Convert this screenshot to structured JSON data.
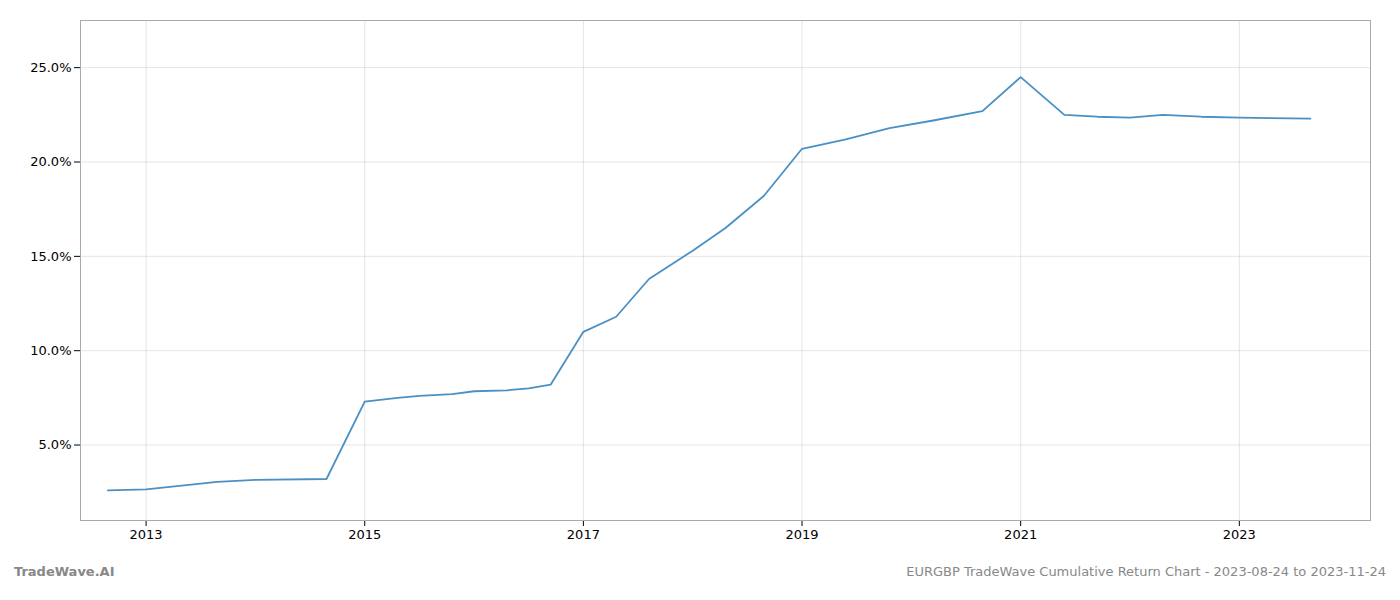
{
  "chart_data": {
    "type": "line",
    "x": [
      2012.65,
      2013.0,
      2013.65,
      2014.0,
      2014.65,
      2015.0,
      2015.3,
      2015.5,
      2015.8,
      2016.0,
      2016.3,
      2016.5,
      2016.7,
      2017.0,
      2017.3,
      2017.6,
      2018.0,
      2018.3,
      2018.65,
      2019.0,
      2019.4,
      2019.8,
      2020.2,
      2020.65,
      2021.0,
      2021.4,
      2021.7,
      2022.0,
      2022.3,
      2022.65,
      2023.0,
      2023.65
    ],
    "values": [
      2.6,
      2.65,
      3.05,
      3.15,
      3.2,
      7.3,
      7.5,
      7.6,
      7.7,
      7.85,
      7.9,
      8.0,
      8.2,
      11.0,
      11.8,
      13.8,
      15.3,
      16.5,
      18.2,
      20.7,
      21.2,
      21.8,
      22.2,
      22.7,
      24.5,
      22.5,
      22.4,
      22.35,
      22.5,
      22.4,
      22.35,
      22.3
    ],
    "color": "#4a90c4",
    "xlim": [
      2012.4,
      2024.2
    ],
    "xticks": [
      2013,
      2015,
      2017,
      2019,
      2021,
      2023
    ],
    "ylim": [
      1.0,
      27.5
    ],
    "yticks": [
      {
        "value": 5.0,
        "label": "5.0%"
      },
      {
        "value": 10.0,
        "label": "10.0%"
      },
      {
        "value": 15.0,
        "label": "15.0%"
      },
      {
        "value": 20.0,
        "label": "20.0%"
      },
      {
        "value": 25.0,
        "label": "25.0%"
      }
    ],
    "grid": true,
    "annotations": [
      "TradeWave.AI",
      "EURGBP TradeWave Cumulative Return Chart - 2023-08-24 to 2023-11-24"
    ]
  }
}
